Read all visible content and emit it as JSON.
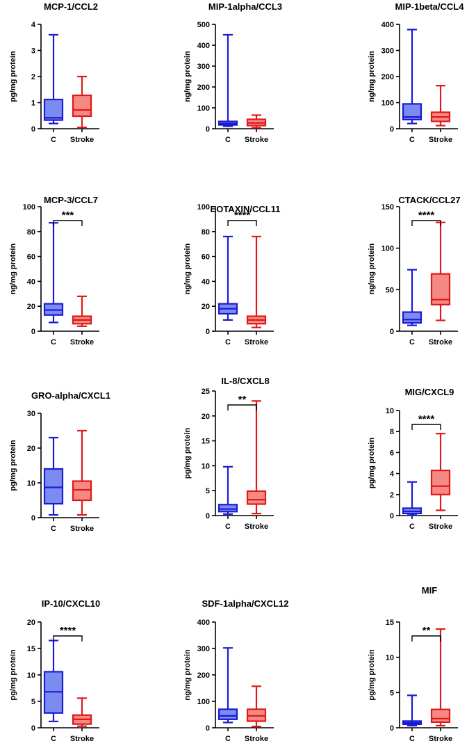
{
  "colors": {
    "control": "#1a1ad6",
    "control_fill": "#7a8cf0",
    "stroke": "#e01818",
    "stroke_fill": "#f58a84"
  },
  "chart_data": [
    {
      "type": "box",
      "title": "MCP-1/CCL2",
      "ylabel": "pg/mg protein",
      "ylim": [
        0,
        4
      ],
      "yticks": [
        0,
        1,
        2,
        3,
        4
      ],
      "categories": [
        "C",
        "Stroke"
      ],
      "significance": "",
      "boxes": [
        {
          "name": "C",
          "min": 0.2,
          "q1": 0.33,
          "median": 0.42,
          "q3": 1.12,
          "max": 3.6
        },
        {
          "name": "Stroke",
          "min": 0.05,
          "q1": 0.48,
          "median": 0.72,
          "q3": 1.28,
          "max": 2.0
        }
      ]
    },
    {
      "type": "box",
      "title": "MIP-1alpha/CCL3",
      "ylabel": "ng/mg protein",
      "ylim": [
        0,
        500
      ],
      "yticks": [
        0,
        100,
        200,
        300,
        400,
        500
      ],
      "categories": [
        "C",
        "Stroke"
      ],
      "significance": "",
      "boxes": [
        {
          "name": "C",
          "min": 12,
          "q1": 18,
          "median": 25,
          "q3": 35,
          "max": 450
        },
        {
          "name": "Stroke",
          "min": 5,
          "q1": 15,
          "median": 28,
          "q3": 45,
          "max": 65
        }
      ]
    },
    {
      "type": "box",
      "title": "MIP-1beta/CCL4",
      "ylabel": "ng/mg protein",
      "ylim": [
        0,
        400
      ],
      "yticks": [
        0,
        100,
        200,
        300,
        400
      ],
      "categories": [
        "C",
        "Stroke"
      ],
      "significance": "",
      "boxes": [
        {
          "name": "C",
          "min": 20,
          "q1": 35,
          "median": 45,
          "q3": 95,
          "max": 380
        },
        {
          "name": "Stroke",
          "min": 12,
          "q1": 28,
          "median": 45,
          "q3": 63,
          "max": 165
        }
      ]
    },
    {
      "type": "box",
      "title": "MCP-3/CCL7",
      "ylabel": "ng/mg protein",
      "ylim": [
        0,
        100
      ],
      "yticks": [
        0,
        20,
        40,
        60,
        80,
        100
      ],
      "categories": [
        "C",
        "Stroke"
      ],
      "significance": "***",
      "boxes": [
        {
          "name": "C",
          "min": 7,
          "q1": 13,
          "median": 17,
          "q3": 22,
          "max": 87
        },
        {
          "name": "Stroke",
          "min": 4,
          "q1": 6,
          "median": 9,
          "q3": 12,
          "max": 28
        }
      ]
    },
    {
      "type": "box",
      "title": "EOTAXIN/CCL11",
      "ylabel": "ng/mg protein",
      "ylim": [
        0,
        100
      ],
      "yticks": [
        0,
        20,
        40,
        60,
        80,
        100
      ],
      "categories": [
        "C",
        "Stroke"
      ],
      "significance": "****",
      "boxes": [
        {
          "name": "C",
          "min": 9,
          "q1": 14,
          "median": 18,
          "q3": 22,
          "max": 76
        },
        {
          "name": "Stroke",
          "min": 3,
          "q1": 6,
          "median": 9,
          "q3": 12,
          "max": 76
        }
      ]
    },
    {
      "type": "box",
      "title": "CTACK/CCL27",
      "ylabel": "ng/mg protein",
      "ylim": [
        0,
        150
      ],
      "yticks": [
        0,
        50,
        100,
        150
      ],
      "categories": [
        "C",
        "Stroke"
      ],
      "significance": "****",
      "boxes": [
        {
          "name": "C",
          "min": 7,
          "q1": 10,
          "median": 14,
          "q3": 23,
          "max": 74
        },
        {
          "name": "Stroke",
          "min": 13,
          "q1": 32,
          "median": 38,
          "q3": 69,
          "max": 131
        }
      ]
    },
    {
      "type": "box",
      "title": "GRO-alpha/CXCL1",
      "ylabel": "pg/mg protein",
      "ylim": [
        0,
        30
      ],
      "yticks": [
        0,
        10,
        20,
        30
      ],
      "categories": [
        "C",
        "Stroke"
      ],
      "significance": "",
      "boxes": [
        {
          "name": "C",
          "min": 0.8,
          "q1": 4,
          "median": 8.7,
          "q3": 14,
          "max": 23
        },
        {
          "name": "Stroke",
          "min": 0.8,
          "q1": 5,
          "median": 8,
          "q3": 10.5,
          "max": 25
        }
      ]
    },
    {
      "type": "box",
      "title": "IL-8/CXCL8",
      "ylabel": "pg/mg protein",
      "ylim": [
        0,
        25
      ],
      "yticks": [
        0,
        5,
        10,
        15,
        20,
        25
      ],
      "categories": [
        "C",
        "Stroke"
      ],
      "significance": "**",
      "boxes": [
        {
          "name": "C",
          "min": 0.3,
          "q1": 0.8,
          "median": 1.3,
          "q3": 2.2,
          "max": 9.8
        },
        {
          "name": "Stroke",
          "min": 0.4,
          "q1": 2.3,
          "median": 3.2,
          "q3": 4.9,
          "max": 23
        }
      ]
    },
    {
      "type": "box",
      "title": "MIG/CXCL9",
      "ylabel": "pg/mg protein",
      "ylim": [
        0,
        10
      ],
      "yticks": [
        0,
        2,
        4,
        6,
        8,
        10
      ],
      "categories": [
        "C",
        "Stroke"
      ],
      "significance": "****",
      "boxes": [
        {
          "name": "C",
          "min": 0.05,
          "q1": 0.2,
          "median": 0.4,
          "q3": 0.7,
          "max": 3.2
        },
        {
          "name": "Stroke",
          "min": 0.5,
          "q1": 2.0,
          "median": 2.8,
          "q3": 4.3,
          "max": 7.8
        }
      ]
    },
    {
      "type": "box",
      "title": "IP-10/CXCL10",
      "ylabel": "pg/mg protein",
      "ylim": [
        0,
        20
      ],
      "yticks": [
        0,
        5,
        10,
        15,
        20
      ],
      "categories": [
        "C",
        "Stroke"
      ],
      "significance": "****",
      "boxes": [
        {
          "name": "C",
          "min": 1.2,
          "q1": 2.8,
          "median": 6.8,
          "q3": 10.6,
          "max": 16.5
        },
        {
          "name": "Stroke",
          "min": 0.3,
          "q1": 0.7,
          "median": 1.6,
          "q3": 2.4,
          "max": 5.6
        }
      ]
    },
    {
      "type": "box",
      "title": "SDF-1alpha/CXCL12",
      "ylabel": "ng/mg protein",
      "ylim": [
        0,
        400
      ],
      "yticks": [
        0,
        100,
        200,
        300,
        400
      ],
      "categories": [
        "C",
        "Stroke"
      ],
      "significance": "",
      "boxes": [
        {
          "name": "C",
          "min": 20,
          "q1": 32,
          "median": 45,
          "q3": 70,
          "max": 302
        },
        {
          "name": "Stroke",
          "min": 5,
          "q1": 25,
          "median": 45,
          "q3": 70,
          "max": 157
        }
      ]
    },
    {
      "type": "box",
      "title": "MIF",
      "ylabel": "pg/mg protein",
      "ylim": [
        0,
        15
      ],
      "yticks": [
        0,
        5,
        10,
        15
      ],
      "categories": [
        "C",
        "Stroke"
      ],
      "significance": "**",
      "boxes": [
        {
          "name": "C",
          "min": 0.3,
          "q1": 0.5,
          "median": 0.7,
          "q3": 0.95,
          "max": 4.6
        },
        {
          "name": "Stroke",
          "min": 0.3,
          "q1": 0.8,
          "median": 1.3,
          "q3": 2.6,
          "max": 14
        }
      ]
    }
  ]
}
